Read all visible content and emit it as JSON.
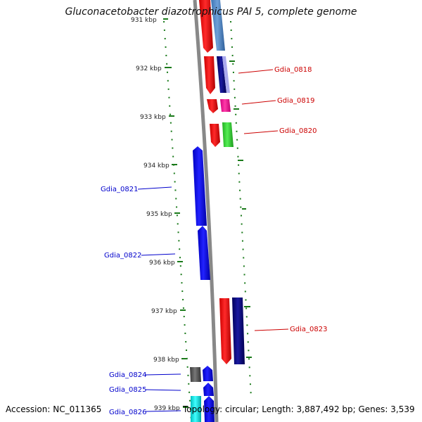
{
  "title": "Gluconacetobacter diazotrophicus PAI 5, complete genome",
  "footer": {
    "accession": "Accession: NC_011365",
    "summary": "Topology: circular; Length: 3,887,492 bp; Genes: 3,539"
  },
  "colors": {
    "backbone": "#888888",
    "tick": "#1a7a1a",
    "forward_label": "#cc0000",
    "reverse_label": "#0000cc"
  },
  "ticks": [
    "931 kbp",
    "932 kbp",
    "933 kbp",
    "934 kbp",
    "935 kbp",
    "936 kbp",
    "937 kbp",
    "938 kbp",
    "939 kbp"
  ],
  "labels": {
    "right": [
      "Gdia_0818",
      "Gdia_0819",
      "Gdia_0820",
      "Gdia_0823"
    ],
    "left": [
      "Gdia_0821",
      "Gdia_0822",
      "Gdia_0824",
      "Gdia_0825",
      "Gdia_0826"
    ]
  }
}
